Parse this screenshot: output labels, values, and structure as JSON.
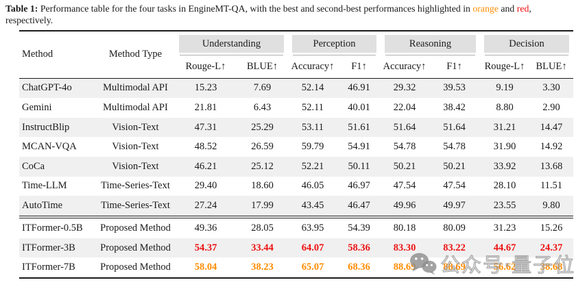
{
  "caption": {
    "label": "Table 1:",
    "body": " Performance table for the four tasks in EngineMT-QA, with the best and second-best performances highlighted in ",
    "best_word": "orange",
    "connector": " and ",
    "second_word": "red",
    "suffix": ", respectively."
  },
  "colors": {
    "best_highlight": "#ff8c00",
    "second_highlight": "#ee1111",
    "group_band_bg": "#e0e0e0",
    "row_stripe_bg": "#f0f0f0"
  },
  "table": {
    "method_header": "Method",
    "method_type_header": "Method Type",
    "groups": [
      {
        "label": "Understanding",
        "sub": [
          "Rouge-L↑",
          "BLUE↑"
        ]
      },
      {
        "label": "Perception",
        "sub": [
          "Accuracy↑",
          "F1↑"
        ]
      },
      {
        "label": "Reasoning",
        "sub": [
          "Accuracy↑",
          "F1↑"
        ]
      },
      {
        "label": "Decision",
        "sub": [
          "Rouge-L↑",
          "BLUE↑"
        ]
      }
    ],
    "rows": [
      {
        "method": "ChatGPT-4o",
        "type": "Multimodal API",
        "values": [
          "15.23",
          "7.69",
          "52.14",
          "46.91",
          "29.32",
          "39.53",
          "9.19",
          "3.30"
        ],
        "highlight": "none",
        "striped": true,
        "block": 1
      },
      {
        "method": "Gemini",
        "type": "Multimodal API",
        "values": [
          "21.81",
          "6.43",
          "52.11",
          "40.01",
          "22.04",
          "38.42",
          "8.80",
          "2.90"
        ],
        "highlight": "none",
        "striped": false,
        "block": 1
      },
      {
        "method": "InstructBlip",
        "type": "Vision-Text",
        "values": [
          "47.31",
          "25.29",
          "53.11",
          "51.61",
          "51.64",
          "51.64",
          "31.21",
          "14.47"
        ],
        "highlight": "none",
        "striped": true,
        "block": 1
      },
      {
        "method": "MCAN-VQA",
        "type": "Vision-Text",
        "values": [
          "48.52",
          "26.59",
          "59.79",
          "54.91",
          "54.78",
          "54.78",
          "31.90",
          "14.92"
        ],
        "highlight": "none",
        "striped": false,
        "block": 1
      },
      {
        "method": "CoCa",
        "type": "Vision-Text",
        "values": [
          "46.21",
          "25.12",
          "52.21",
          "50.11",
          "50.21",
          "50.21",
          "33.92",
          "13.68"
        ],
        "highlight": "none",
        "striped": true,
        "block": 1
      },
      {
        "method": "Time-LLM",
        "type": "Time-Series-Text",
        "values": [
          "29.40",
          "18.60",
          "46.05",
          "46.97",
          "47.54",
          "47.54",
          "28.10",
          "11.51"
        ],
        "highlight": "none",
        "striped": false,
        "block": 1
      },
      {
        "method": "AutoTime",
        "type": "Time-Series-Text",
        "values": [
          "27.24",
          "17.99",
          "43.45",
          "46.47",
          "49.96",
          "49.97",
          "23.55",
          "9.80"
        ],
        "highlight": "none",
        "striped": true,
        "block": 1
      },
      {
        "method": "ITFormer-0.5B",
        "type": "Proposed Method",
        "values": [
          "49.36",
          "28.05",
          "63.95",
          "54.39",
          "80.18",
          "80.09",
          "31.23",
          "15.26"
        ],
        "highlight": "none",
        "striped": false,
        "block": 2
      },
      {
        "method": "ITFormer-3B",
        "type": "Proposed Method",
        "values": [
          "54.37",
          "33.44",
          "64.07",
          "58.36",
          "83.30",
          "83.22",
          "44.67",
          "24.37"
        ],
        "highlight": "second",
        "striped": true,
        "block": 2
      },
      {
        "method": "ITFormer-7B",
        "type": "Proposed Method",
        "values": [
          "58.04",
          "38.23",
          "65.07",
          "68.36",
          "88.69",
          "88.69",
          "56.62",
          "38.68"
        ],
        "highlight": "best",
        "striped": false,
        "block": 2
      }
    ]
  },
  "watermark": {
    "icon": "wechat-icon",
    "text": "公众号·量子位"
  }
}
